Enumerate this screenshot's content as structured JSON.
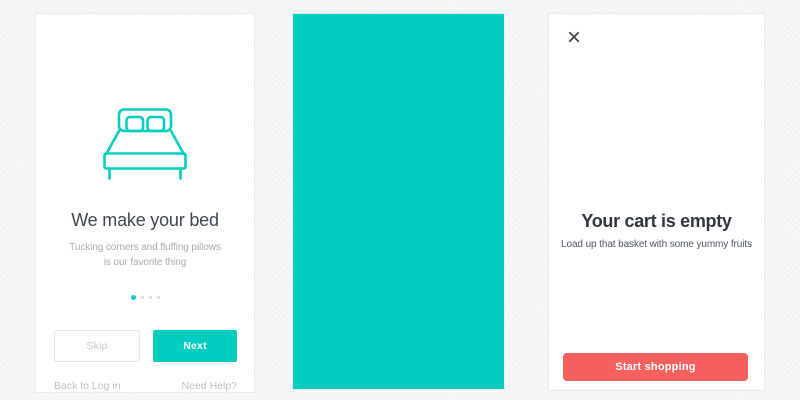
{
  "colors": {
    "teal": "#02CDBF",
    "coral": "#F4615E",
    "canvas_background": "#F7F7F8"
  },
  "screens": {
    "onboarding": {
      "title": "We make your bed",
      "subtitle_line1": "Tucking corners and fluffing pillows",
      "subtitle_line2": "is our favorite thing",
      "pagination": {
        "total": 4,
        "active_index": 0
      },
      "skip_label": "Skip",
      "next_label": "Next",
      "back_link": "Back to Log in",
      "help_link": "Need Help?"
    },
    "splash": {
      "background": "#02CDBF"
    },
    "cart": {
      "close_glyph": "×",
      "title": "Your cart is empty",
      "subtitle": "Load up that basket with some yummy fruits",
      "cta_label": "Start shopping"
    }
  }
}
